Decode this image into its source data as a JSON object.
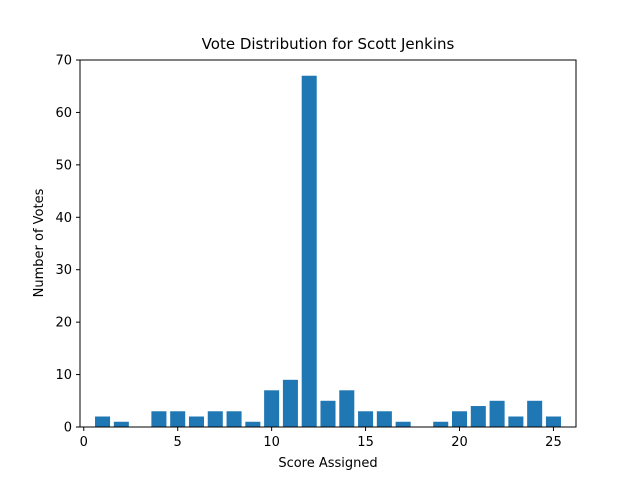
{
  "chart_data": {
    "type": "bar",
    "title": "Vote Distribution for Scott Jenkins",
    "xlabel": "Score Assigned",
    "ylabel": "Number of Votes",
    "x": [
      1,
      2,
      3,
      4,
      5,
      6,
      7,
      8,
      9,
      10,
      11,
      12,
      13,
      14,
      15,
      16,
      17,
      18,
      19,
      20,
      21,
      22,
      23,
      24,
      25
    ],
    "values": [
      2,
      1,
      0,
      3,
      3,
      2,
      3,
      3,
      1,
      7,
      9,
      67,
      5,
      7,
      3,
      3,
      1,
      0,
      1,
      3,
      4,
      5,
      2,
      5,
      2
    ],
    "xlim": [
      -0.2,
      26.2
    ],
    "ylim": [
      0,
      70
    ],
    "xticks": [
      0,
      5,
      10,
      15,
      20,
      25
    ],
    "yticks": [
      0,
      10,
      20,
      30,
      40,
      50,
      60,
      70
    ],
    "grid": false,
    "bar_color": "#1f77b4"
  }
}
